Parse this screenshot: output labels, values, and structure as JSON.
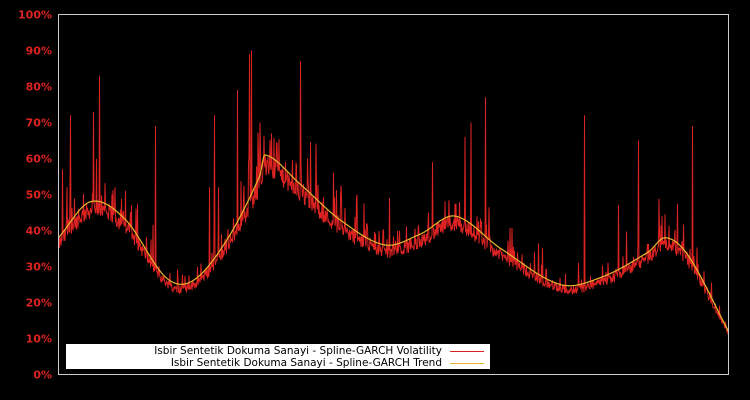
{
  "chart_data": {
    "type": "line",
    "title": "",
    "xlabel": "",
    "ylabel": "",
    "ylim": [
      0,
      100
    ],
    "y_ticks": [
      "0%",
      "10%",
      "20%",
      "30%",
      "40%",
      "50%",
      "60%",
      "70%",
      "80%",
      "90%",
      "100%"
    ],
    "x_ticks": [],
    "grid": false,
    "background": "#000000",
    "frame_color": "#cccccc",
    "tick_color": "#dd2222",
    "legend_position": "lower-left",
    "series": [
      {
        "name": "Isbir Sentetik Dokuma Sanayi - Spline-GARCH Volatility",
        "color": "#dd2222",
        "description": "daily volatility, noisy band slightly below trend with frequent upward spikes",
        "spikes": [
          {
            "x": 0.006,
            "y": 57
          },
          {
            "x": 0.013,
            "y": 52
          },
          {
            "x": 0.018,
            "y": 72
          },
          {
            "x": 0.03,
            "y": 46
          },
          {
            "x": 0.052,
            "y": 73
          },
          {
            "x": 0.061,
            "y": 83
          },
          {
            "x": 0.084,
            "y": 52
          },
          {
            "x": 0.1,
            "y": 51
          },
          {
            "x": 0.109,
            "y": 47
          },
          {
            "x": 0.145,
            "y": 69
          },
          {
            "x": 0.225,
            "y": 52
          },
          {
            "x": 0.233,
            "y": 72
          },
          {
            "x": 0.239,
            "y": 52
          },
          {
            "x": 0.267,
            "y": 79
          },
          {
            "x": 0.285,
            "y": 89
          },
          {
            "x": 0.288,
            "y": 90
          },
          {
            "x": 0.301,
            "y": 70
          },
          {
            "x": 0.318,
            "y": 67
          },
          {
            "x": 0.361,
            "y": 87
          },
          {
            "x": 0.372,
            "y": 60
          },
          {
            "x": 0.421,
            "y": 49
          },
          {
            "x": 0.445,
            "y": 49
          },
          {
            "x": 0.494,
            "y": 49
          },
          {
            "x": 0.558,
            "y": 59
          },
          {
            "x": 0.607,
            "y": 66
          },
          {
            "x": 0.616,
            "y": 70
          },
          {
            "x": 0.637,
            "y": 77
          },
          {
            "x": 0.785,
            "y": 72
          },
          {
            "x": 0.836,
            "y": 47
          },
          {
            "x": 0.866,
            "y": 65
          },
          {
            "x": 0.901,
            "y": 44
          },
          {
            "x": 0.946,
            "y": 69
          }
        ]
      },
      {
        "name": "Isbir Sentetik Dokuma Sanayi - Spline-GARCH Trend",
        "color": "#e8b530",
        "description": "smooth spline trend",
        "points": [
          {
            "x": 0.0,
            "y": 38
          },
          {
            "x": 0.048,
            "y": 48
          },
          {
            "x": 0.1,
            "y": 43
          },
          {
            "x": 0.16,
            "y": 27
          },
          {
            "x": 0.2,
            "y": 26
          },
          {
            "x": 0.25,
            "y": 37
          },
          {
            "x": 0.3,
            "y": 55
          },
          {
            "x": 0.308,
            "y": 61
          },
          {
            "x": 0.36,
            "y": 53
          },
          {
            "x": 0.42,
            "y": 43
          },
          {
            "x": 0.487,
            "y": 36
          },
          {
            "x": 0.54,
            "y": 39
          },
          {
            "x": 0.592,
            "y": 44
          },
          {
            "x": 0.66,
            "y": 35
          },
          {
            "x": 0.749,
            "y": 25
          },
          {
            "x": 0.81,
            "y": 27
          },
          {
            "x": 0.88,
            "y": 34
          },
          {
            "x": 0.906,
            "y": 38
          },
          {
            "x": 0.94,
            "y": 33
          },
          {
            "x": 1.0,
            "y": 12
          }
        ]
      }
    ]
  },
  "legend": {
    "items": [
      {
        "label": "Isbir Sentetik Dokuma Sanayi - Spline-GARCH Volatility",
        "color": "#dd2222"
      },
      {
        "label": "Isbir Sentetik Dokuma Sanayi - Spline-GARCH Trend",
        "color": "#e8b530"
      }
    ]
  }
}
